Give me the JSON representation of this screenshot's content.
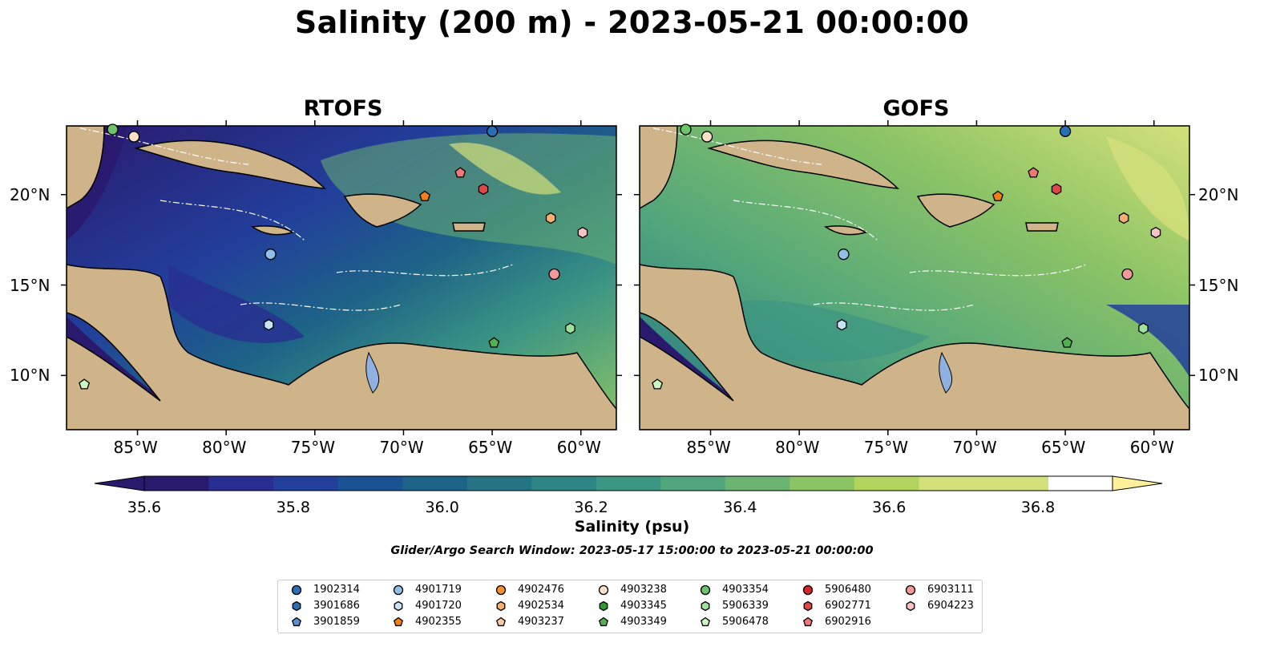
{
  "title": "Salinity (200 m) - 2023-05-21 00:00:00",
  "panels": [
    {
      "name": "RTOFS"
    },
    {
      "name": "GOFS"
    }
  ],
  "lon_ticks": [
    "85°W",
    "80°W",
    "75°W",
    "70°W",
    "65°W",
    "60°W"
  ],
  "lat_ticks": [
    "20°N",
    "15°N",
    "10°N"
  ],
  "map_extent": {
    "lon_min": -89,
    "lon_max": -58,
    "lat_min": 7,
    "lat_max": 23.8
  },
  "colorbar": {
    "label": "Salinity (psu)",
    "min": 35.5,
    "max": 37.0,
    "step": 0.1,
    "ticks": [
      "35.6",
      "35.8",
      "36.0",
      "36.2",
      "36.4",
      "36.6",
      "36.8"
    ],
    "colors": [
      "#2a1a6e",
      "#282e91",
      "#223f9b",
      "#1a5393",
      "#1d6387",
      "#257483",
      "#2f8584",
      "#3c9683",
      "#50a57c",
      "#6ab371",
      "#8cc465",
      "#b0d45e",
      "#d4e07a",
      "#fdf09a"
    ]
  },
  "search_window": "Glider/Argo Search Window: 2023-05-17 15:00:00 to 2023-05-21 00:00:00",
  "floats": [
    {
      "id": "1902314",
      "marker": "circle",
      "color": "#2a6fb5",
      "lon": -65.0,
      "lat": 23.5
    },
    {
      "id": "3901686",
      "marker": "hexagon",
      "color": "#2a6fb5",
      "lon": null,
      "lat": null
    },
    {
      "id": "3901859",
      "marker": "pentagon",
      "color": "#5b8fd0",
      "lon": null,
      "lat": null
    },
    {
      "id": "4901719",
      "marker": "circle",
      "color": "#8ec0e8",
      "lon": -77.5,
      "lat": 16.7
    },
    {
      "id": "4901720",
      "marker": "hexagon",
      "color": "#c9e3f6",
      "lon": -77.6,
      "lat": 12.8
    },
    {
      "id": "4902355",
      "marker": "pentagon",
      "color": "#f07f1a",
      "lon": -68.8,
      "lat": 19.9
    },
    {
      "id": "4902476",
      "marker": "circle",
      "color": "#f5922f",
      "lon": null,
      "lat": null
    },
    {
      "id": "4902534",
      "marker": "hexagon",
      "color": "#f8b06e",
      "lon": -61.7,
      "lat": 18.7
    },
    {
      "id": "4903237",
      "marker": "pentagon",
      "color": "#fbc9a1",
      "lon": null,
      "lat": null
    },
    {
      "id": "4903238",
      "marker": "circle",
      "color": "#fde0c8",
      "lon": -85.2,
      "lat": 23.2
    },
    {
      "id": "4903345",
      "marker": "hexagon",
      "color": "#2f9a2f",
      "lon": null,
      "lat": null
    },
    {
      "id": "4903349",
      "marker": "pentagon",
      "color": "#4fb34f",
      "lon": -64.9,
      "lat": 11.8
    },
    {
      "id": "4903354",
      "marker": "circle",
      "color": "#6cc46c",
      "lon": -86.4,
      "lat": 23.6
    },
    {
      "id": "5906339",
      "marker": "hexagon",
      "color": "#9fe09f",
      "lon": -60.6,
      "lat": 12.6
    },
    {
      "id": "5906478",
      "marker": "pentagon",
      "color": "#ccf7c2",
      "lon": -88.0,
      "lat": 9.5
    },
    {
      "id": "5906480",
      "marker": "circle",
      "color": "#d62728",
      "lon": null,
      "lat": null
    },
    {
      "id": "6902771",
      "marker": "hexagon",
      "color": "#e04848",
      "lon": -65.5,
      "lat": 20.3
    },
    {
      "id": "6902916",
      "marker": "pentagon",
      "color": "#ee7777",
      "lon": -66.8,
      "lat": 21.2
    },
    {
      "id": "6903111",
      "marker": "circle",
      "color": "#f29a9a",
      "lon": -61.5,
      "lat": 15.6
    },
    {
      "id": "6904223",
      "marker": "hexagon",
      "color": "#f8c3c3",
      "lon": -59.9,
      "lat": 17.9
    }
  ]
}
